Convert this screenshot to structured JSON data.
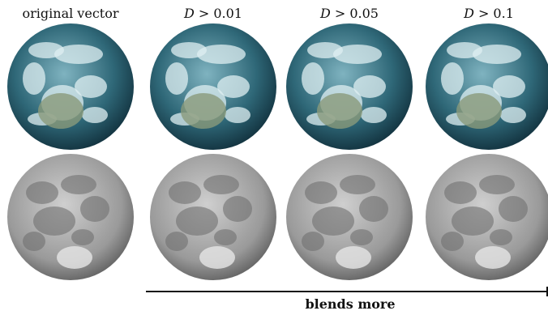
{
  "columns": [
    {
      "label": "original vector"
    },
    {
      "symbol": "D",
      "condition": "> 0.01"
    },
    {
      "symbol": "D",
      "condition": "> 0.05"
    },
    {
      "symbol": "D",
      "condition": "> 0.1"
    }
  ],
  "axis_label": "blends more"
}
